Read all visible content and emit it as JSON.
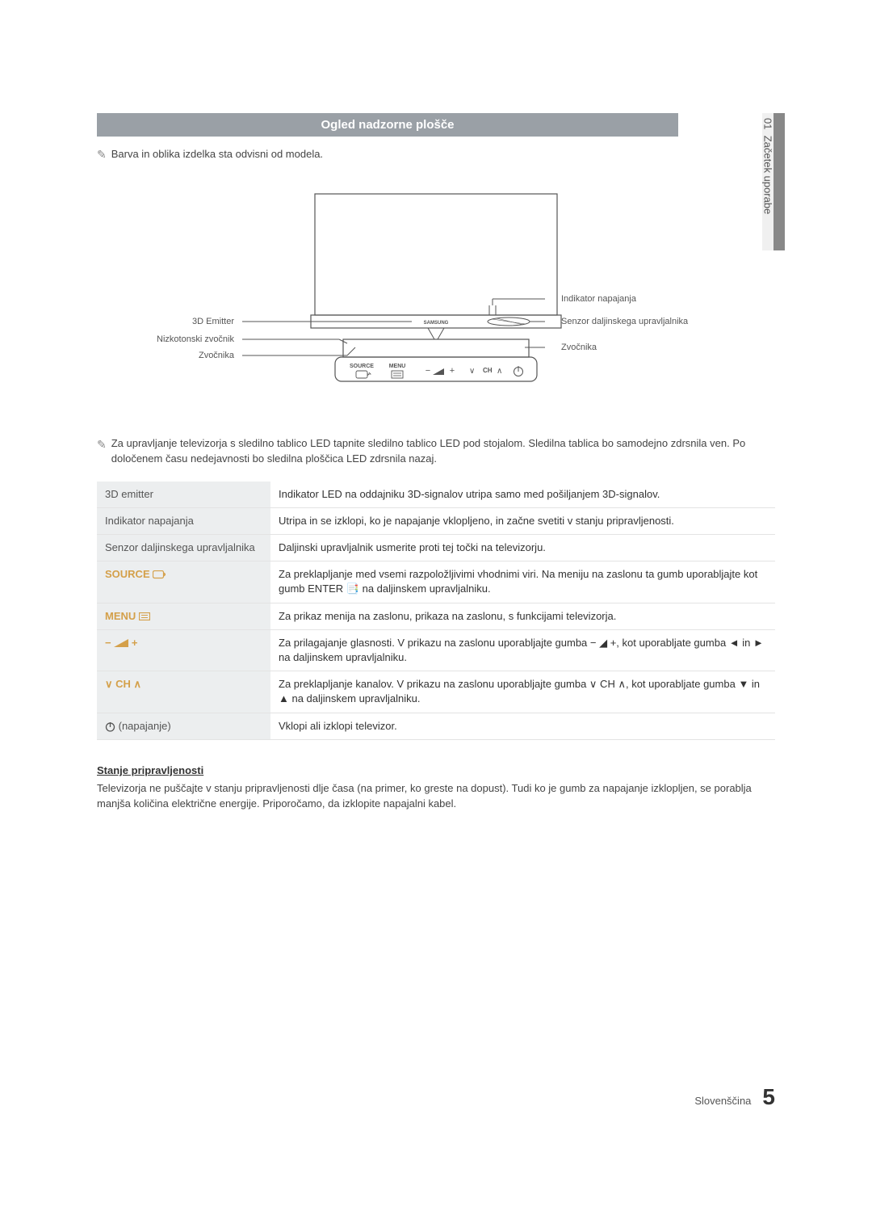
{
  "side_tab": {
    "chapter_num": "01",
    "chapter_title": "Začetek uporabe"
  },
  "header": {
    "title": "Ogled nadzorne plošče"
  },
  "note1": "Barva in oblika izdelka sta odvisni od modela.",
  "diagram": {
    "labels": {
      "emitter": "3D Emitter",
      "subwoofer": "Nizkotonski zvočnik",
      "speaker_l": "Zvočnika",
      "power_ind": "Indikator napajanja",
      "remote_sensor": "Senzor daljinskega upravljalnika",
      "speaker_r": "Zvočnika"
    },
    "buttons": {
      "source": "SOURCE",
      "menu": "MENU",
      "ch": "CH"
    }
  },
  "note2": "Za upravljanje televizorja s sledilno tablico LED tapnite sledilno tablico LED pod stojalom. Sledilna tablica bo samodejno zdrsnila ven. Po določenem času nedejavnosti bo sledilna ploščica LED zdrsnila nazaj.",
  "table": {
    "rows": [
      {
        "label": "3D emitter",
        "label_style": "plain",
        "desc": "Indikator LED na oddajniku 3D-signalov utripa samo med pošiljanjem 3D-signalov."
      },
      {
        "label": "Indikator napajanja",
        "label_style": "plain",
        "desc": "Utripa in se izklopi, ko je napajanje vklopljeno, in začne svetiti v stanju pripravljenosti."
      },
      {
        "label": "Senzor daljinskega upravljalnika",
        "label_style": "plain",
        "desc": "Daljinski upravljalnik usmerite proti tej točki na televizorju."
      },
      {
        "label": "SOURCE",
        "label_style": "menu",
        "icon": "enter-box",
        "desc": "Za preklapljanje med vsemi razpoložljivimi vhodnimi viri. Na meniju na zaslonu ta gumb uporabljajte kot gumb ENTER 📑 na daljinskem upravljalniku."
      },
      {
        "label": "MENU",
        "label_style": "menu",
        "icon": "menu-bars",
        "desc": "Za prikaz menija na zaslonu, prikaza na zaslonu, s funkcijami televizorja."
      },
      {
        "label": "vol",
        "label_style": "menu",
        "icon": "volume",
        "desc": "Za prilagajanje glasnosti. V prikazu na zaslonu uporabljajte gumba − ◢ +, kot uporabljate gumba ◄ in ► na daljinskem upravljalniku."
      },
      {
        "label": "ch",
        "label_style": "menu",
        "icon": "ch",
        "desc": "Za preklapljanje kanalov. V prikazu na zaslonu uporabljajte gumba ∨ CH ∧, kot uporabljate gumba ▼ in ▲ na daljinskem upravljalniku."
      },
      {
        "label": "(napajanje)",
        "label_style": "plain",
        "icon": "power",
        "desc": "Vklopi ali izklopi televizor."
      }
    ]
  },
  "standby": {
    "heading": "Stanje pripravljenosti",
    "body": "Televizorja ne puščajte v stanju pripravljenosti dlje časa (na primer, ko greste na dopust). Tudi ko je gumb za napajanje izklopljen, se porablja manjša količina električne energije. Priporočamo, da izklopite napajalni kabel."
  },
  "footer": {
    "lang": "Slovenščina",
    "page": "5"
  },
  "colors": {
    "header_bg": "#9aa0a6",
    "header_fg": "#ffffff",
    "row_label_bg": "#eceeef",
    "menu_label_color": "#d4a04a",
    "text": "#444444",
    "line": "#555555"
  }
}
